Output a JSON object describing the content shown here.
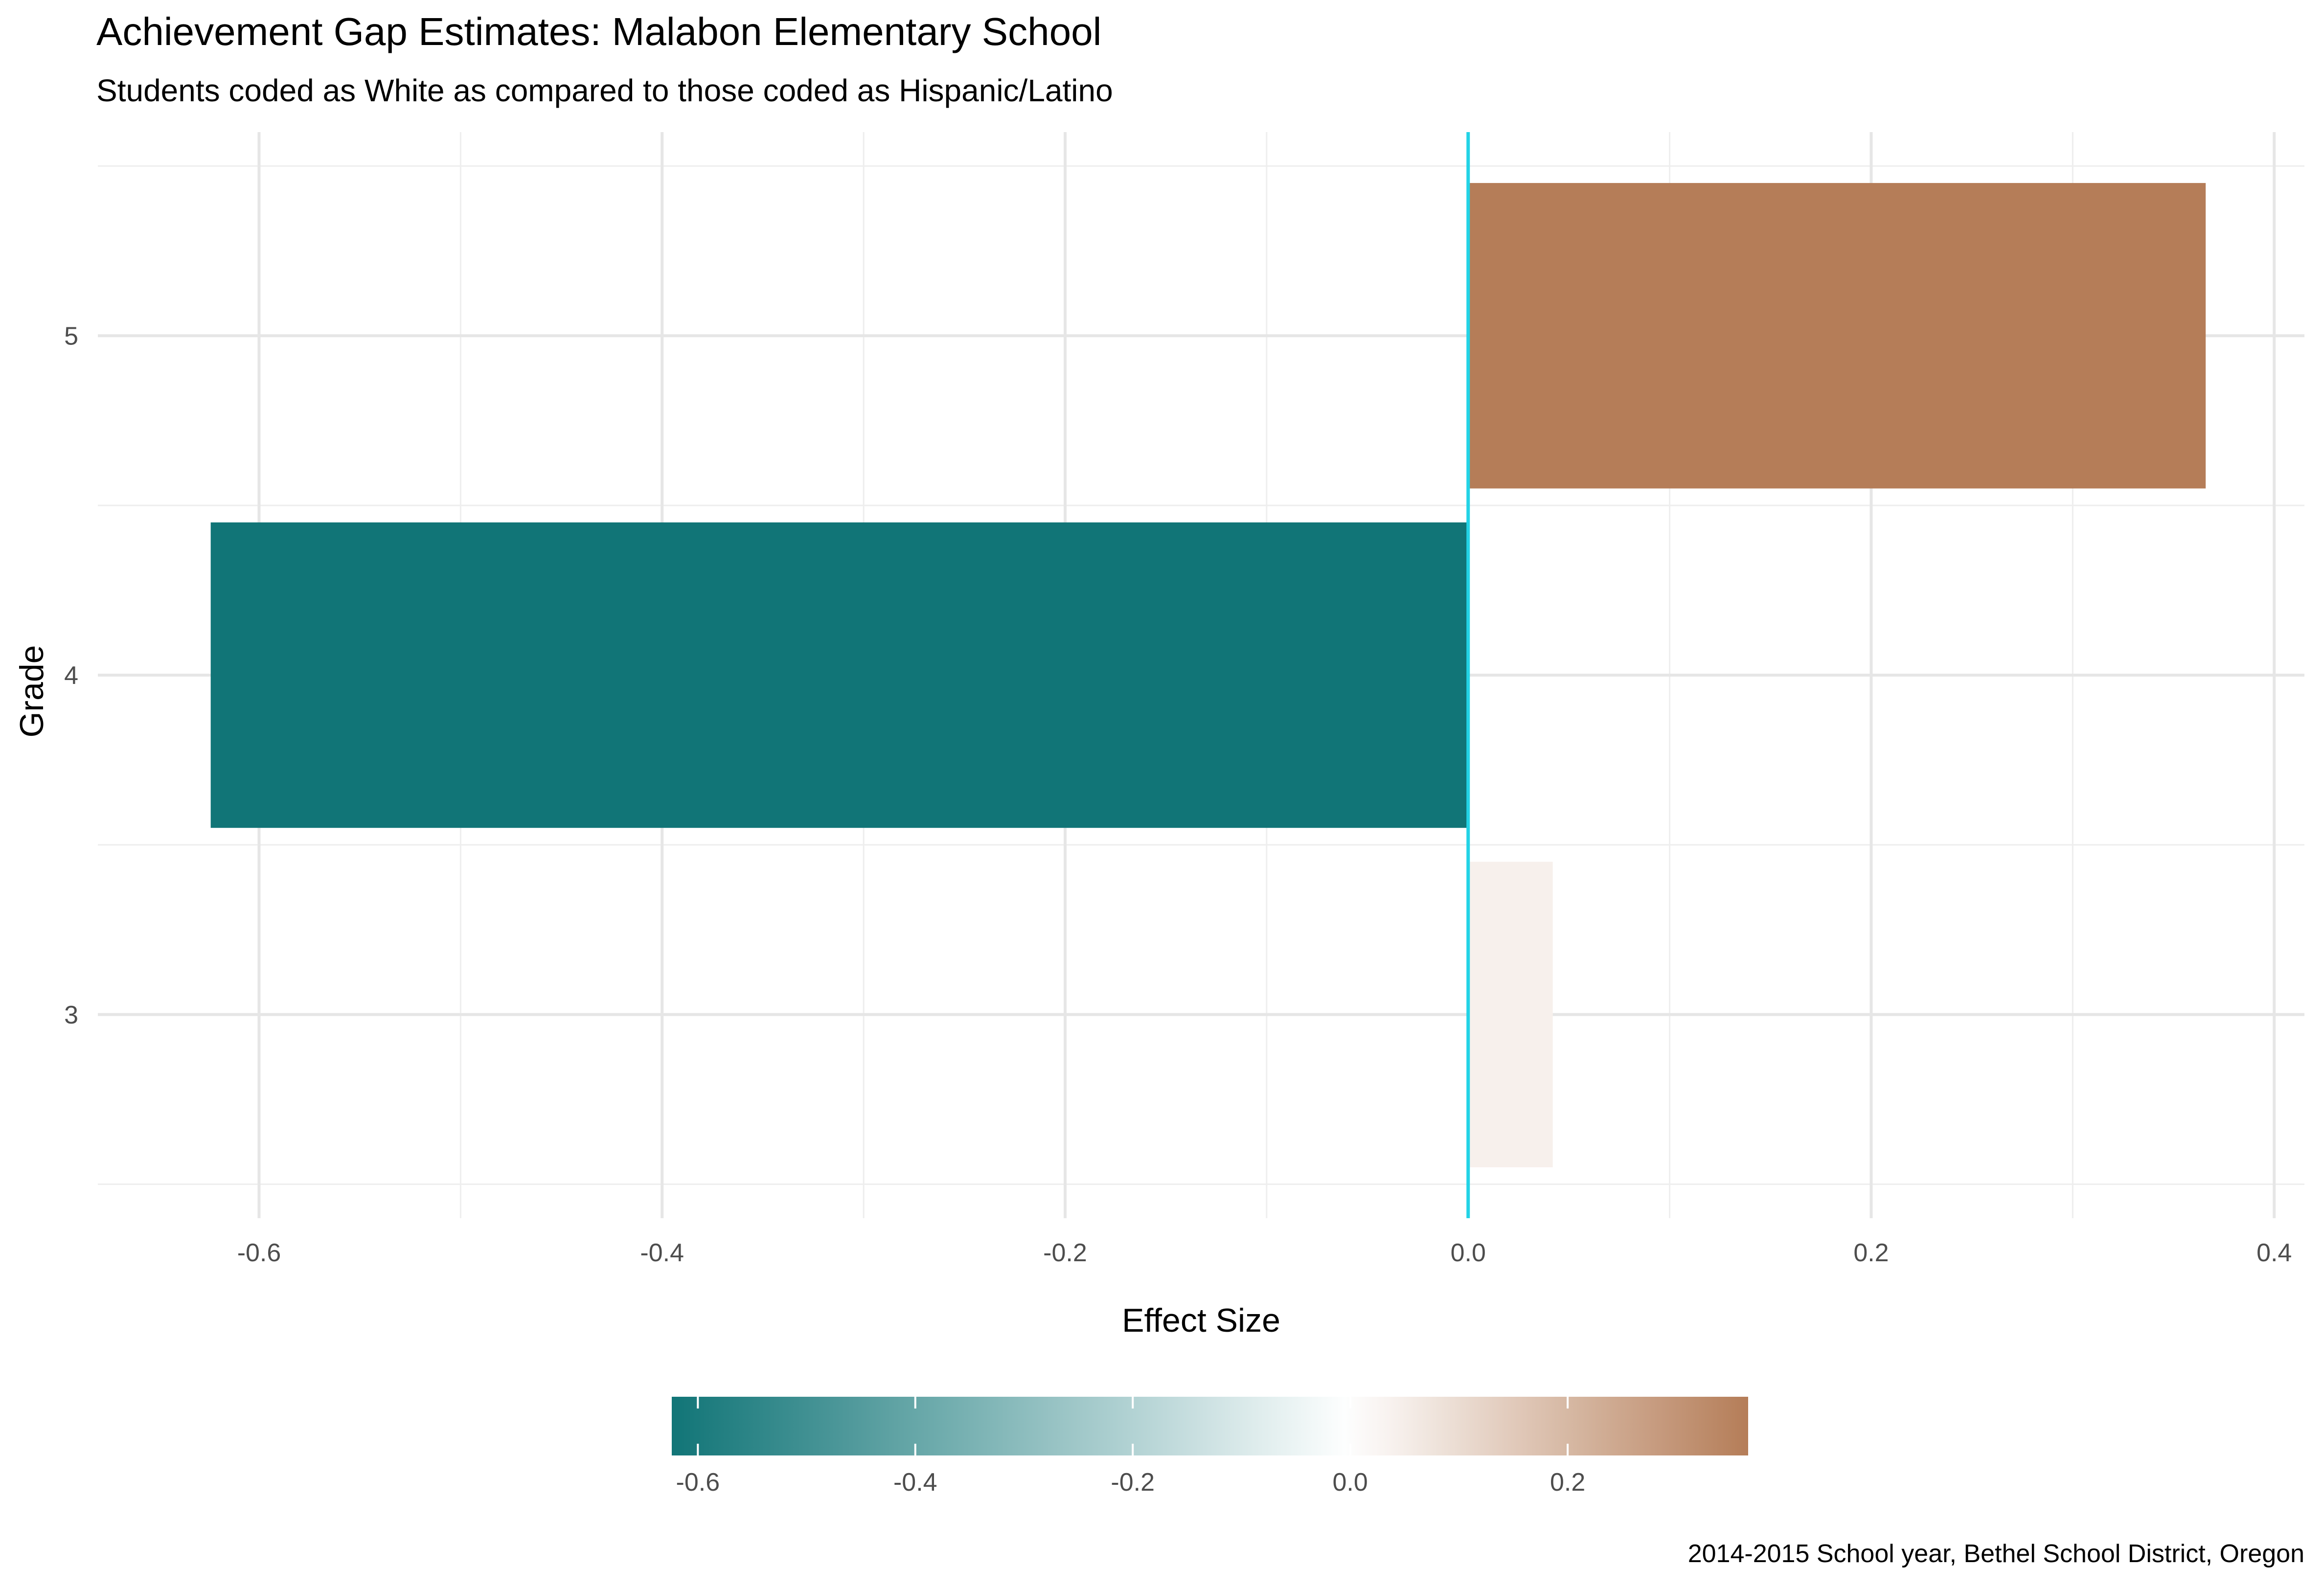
{
  "chart_data": {
    "type": "bar",
    "orientation": "horizontal",
    "title": "Achievement Gap Estimates: Malabon Elementary School",
    "subtitle": "Students coded as White as compared to those coded as Hispanic/Latino",
    "caption": "2014-2015 School year, Bethel School District, Oregon",
    "xlabel": "Effect Size",
    "ylabel": "Grade",
    "categories": [
      "3",
      "4",
      "5"
    ],
    "values": [
      0.042,
      -0.624,
      0.366
    ],
    "xlim": [
      -0.68,
      0.415
    ],
    "x_ticks": [
      -0.6,
      -0.4,
      -0.2,
      0.0,
      0.2,
      0.4
    ],
    "x_tick_labels": [
      "-0.6",
      "-0.4",
      "-0.2",
      "0.0",
      "0.2",
      "0.4"
    ],
    "reference_line": {
      "x": 0,
      "color": "#22d3e6"
    },
    "grid": true,
    "legend": {
      "placement": "bottom",
      "type": "colorbar",
      "range": [
        -0.624,
        0.366
      ],
      "ticks": [
        -0.6,
        -0.4,
        -0.2,
        0.0,
        0.2
      ],
      "tick_labels": [
        "-0.6",
        "-0.4",
        "-0.2",
        "0.0",
        "0.2"
      ],
      "colors": {
        "low": "#117577",
        "mid": "#ffffff",
        "high": "#b57d58"
      }
    }
  }
}
